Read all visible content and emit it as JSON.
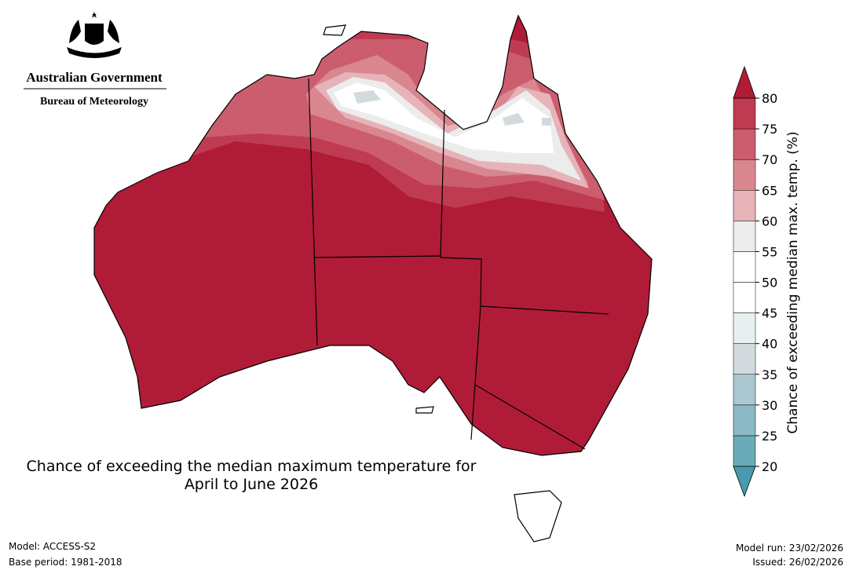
{
  "logo": {
    "line1": "Australian Government",
    "line2": "Bureau of Meteorology"
  },
  "map": {
    "title_lines": [
      "Chance of exceeding the median maximum temperature for",
      "April to June 2026"
    ]
  },
  "colorbar": {
    "label": "Chance of exceeding median max. temp. (%)",
    "ticks": [
      20,
      25,
      30,
      35,
      40,
      45,
      50,
      55,
      60,
      65,
      70,
      75,
      80
    ],
    "segment_colors": [
      "#6aabb8",
      "#8bbac4",
      "#a9c8cf",
      "#d3dadd",
      "#e8eff1",
      "#ffffff",
      "#ffffff",
      "#ececec",
      "#e6b3b8",
      "#d9868f",
      "#cc5d6e",
      "#bf3b52"
    ],
    "low_color": "#4a9aae",
    "high_color": "#b01c37"
  },
  "footer": {
    "model": "Model: ACCESS-S2",
    "base_period": "Base period: 1981-2018",
    "model_run": "Model run: 23/02/2026",
    "issued": "Issued: 26/02/2026"
  }
}
